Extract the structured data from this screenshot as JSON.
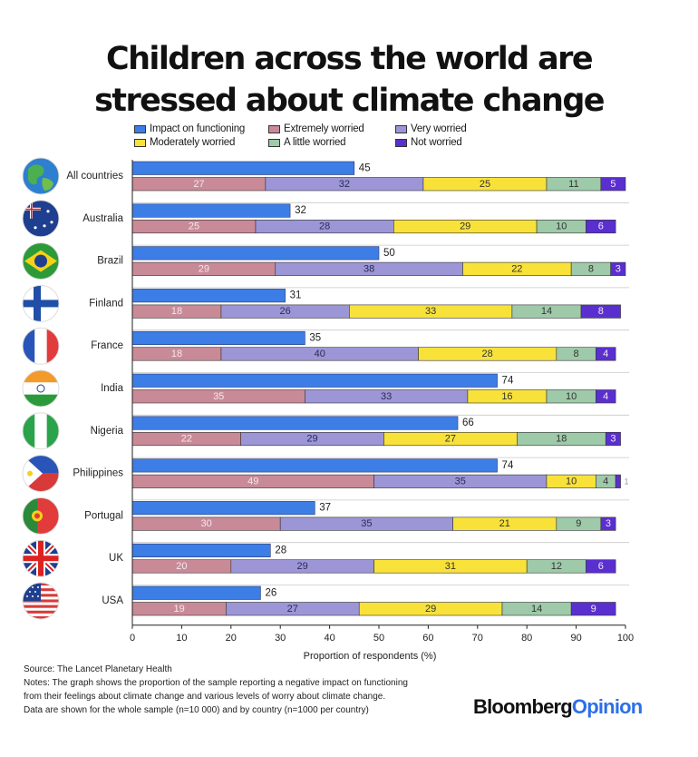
{
  "title_line1": "Children across the world are",
  "title_line2": "stressed about climate change",
  "footer": {
    "source": "Source: The Lancet Planetary Health",
    "notes_line1": "Notes: The graph shows the proportion of the sample reporting a negative impact on functioning",
    "notes_line2": "from their feelings about climate change and various levels of worry about climate change.",
    "notes_line3": "Data are shown for the whole sample (n=10 000) and by country (n=1000 per country)"
  },
  "brand": {
    "part1": "Bloomberg",
    "part2": "Opinion"
  },
  "legend_items": [
    {
      "label": "Impact on functioning",
      "color": "#3d7de6"
    },
    {
      "label": "Extremely worried",
      "color": "#c98a98"
    },
    {
      "label": "Very worried",
      "color": "#9c96d6"
    },
    {
      "label": "Moderately worried",
      "color": "#f8e23a"
    },
    {
      "label": "A little worried",
      "color": "#9ecaa9"
    },
    {
      "label": "Not worried",
      "color": "#5a2fd0"
    }
  ],
  "chart_data": {
    "type": "bar",
    "orientation": "horizontal",
    "xlabel": "Proportion of respondents (%)",
    "xlim": [
      0,
      100
    ],
    "xticks": [
      0,
      10,
      20,
      30,
      40,
      50,
      60,
      70,
      80,
      90,
      100
    ],
    "grid": false,
    "legend_position": "top",
    "categories": [
      "All countries",
      "Australia",
      "Brazil",
      "Finland",
      "France",
      "India",
      "Nigeria",
      "Philippines",
      "Portugal",
      "UK",
      "USA"
    ],
    "flag_icons": [
      "globe-icon",
      "australia-flag-icon",
      "brazil-flag-icon",
      "finland-flag-icon",
      "france-flag-icon",
      "india-flag-icon",
      "nigeria-flag-icon",
      "philippines-flag-icon",
      "portugal-flag-icon",
      "uk-flag-icon",
      "usa-flag-icon"
    ],
    "series": [
      {
        "name": "Impact on functioning",
        "values": [
          45,
          32,
          50,
          31,
          35,
          74,
          66,
          74,
          37,
          28,
          26
        ]
      },
      {
        "name": "Extremely worried",
        "values": [
          27,
          25,
          29,
          18,
          18,
          35,
          22,
          49,
          30,
          20,
          19
        ]
      },
      {
        "name": "Very worried",
        "values": [
          32,
          28,
          38,
          26,
          40,
          33,
          29,
          35,
          35,
          29,
          27
        ]
      },
      {
        "name": "Moderately worried",
        "values": [
          25,
          29,
          22,
          33,
          28,
          16,
          27,
          10,
          21,
          31,
          29
        ]
      },
      {
        "name": "A little worried",
        "values": [
          11,
          10,
          8,
          14,
          8,
          10,
          18,
          4,
          9,
          12,
          14
        ]
      },
      {
        "name": "Not worried",
        "values": [
          5,
          6,
          3,
          8,
          4,
          4,
          3,
          1,
          3,
          6,
          9
        ]
      }
    ]
  }
}
